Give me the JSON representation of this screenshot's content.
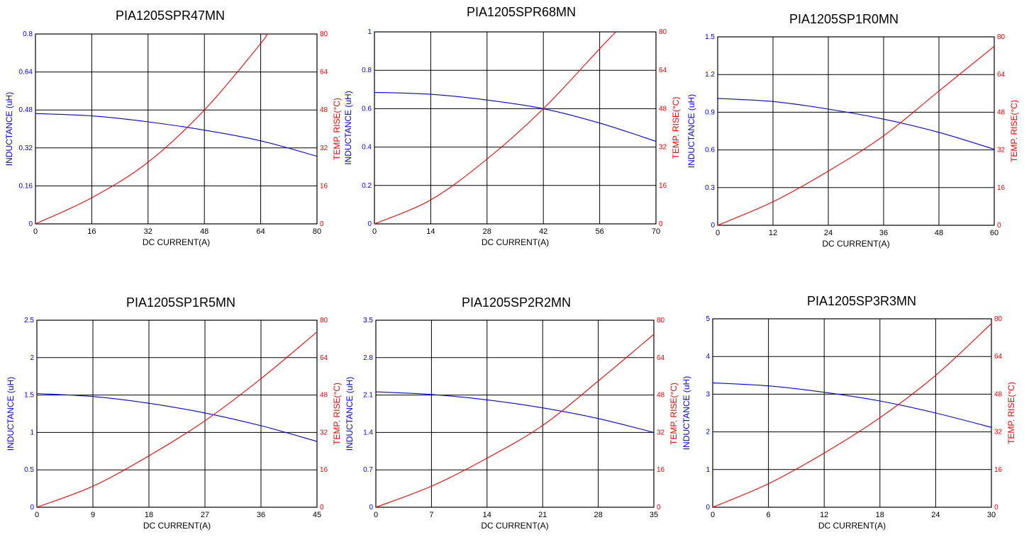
{
  "colors": {
    "inductance": "#0000ff",
    "temp_rise": "#ff0000",
    "grid": "#000000"
  },
  "chart_data": [
    {
      "type": "line",
      "title": "PIA1205SPR47MN",
      "xlabel": "DC CURRENT(A)",
      "ylabel": "INDUCTANCE (uH)",
      "y2label": "TEMP. RISE(°C)",
      "xlim": [
        0,
        80
      ],
      "ylim": [
        0,
        0.8
      ],
      "y2lim": [
        0,
        80
      ],
      "xticks": [
        "0",
        "16",
        "32",
        "48",
        "64",
        "80"
      ],
      "yticks": [
        "0",
        "0.16",
        "0.32",
        "0.48",
        "0.64",
        "0.8"
      ],
      "y2ticks": [
        "0",
        "16",
        "32",
        "48",
        "64",
        "80"
      ],
      "grid": true,
      "series": [
        {
          "axis": "left",
          "color": "#0000ff",
          "x": [
            0,
            16,
            32,
            48,
            64,
            80
          ],
          "values": [
            0.465,
            0.455,
            0.43,
            0.395,
            0.35,
            0.285
          ]
        },
        {
          "axis": "right",
          "color": "#ff0000",
          "x": [
            0,
            16,
            32,
            48,
            64,
            65.5
          ],
          "values": [
            0,
            11,
            26,
            48,
            76,
            80
          ]
        }
      ]
    },
    {
      "type": "line",
      "title": "PIA1205SPR68MN",
      "xlabel": "DC CURRENT(A)",
      "ylabel": "INDUCTANCE (uH)",
      "y2label": "TEMP. RISE(°C)",
      "xlim": [
        0,
        70
      ],
      "ylim": [
        0,
        1
      ],
      "y2lim": [
        0,
        80
      ],
      "xticks": [
        "0",
        "14",
        "28",
        "42",
        "56",
        "70"
      ],
      "yticks": [
        "0",
        "0.2",
        "0.4",
        "0.6",
        "0.8",
        "1"
      ],
      "y2ticks": [
        "0",
        "16",
        "32",
        "48",
        "64",
        "80"
      ],
      "grid": true,
      "series": [
        {
          "axis": "left",
          "color": "#0000ff",
          "x": [
            0,
            14,
            28,
            42,
            56,
            70
          ],
          "values": [
            0.685,
            0.675,
            0.645,
            0.6,
            0.525,
            0.43
          ]
        },
        {
          "axis": "right",
          "color": "#ff0000",
          "x": [
            0,
            14,
            28,
            42,
            56,
            60
          ],
          "values": [
            0,
            10,
            27,
            48,
            73,
            80
          ]
        }
      ]
    },
    {
      "type": "line",
      "title": "PIA1205SP1R0MN",
      "xlabel": "DC CURRENT(A)",
      "ylabel": "INDUCTANCE (uH)",
      "y2label": "TEMP. RISE(°C)",
      "xlim": [
        0,
        60
      ],
      "ylim": [
        0,
        1.5
      ],
      "y2lim": [
        0,
        80
      ],
      "xticks": [
        "0",
        "12",
        "24",
        "36",
        "48",
        "60"
      ],
      "yticks": [
        "0",
        "0.3",
        "0.6",
        "0.9",
        "1.2",
        "1.5"
      ],
      "y2ticks": [
        "0",
        "16",
        "32",
        "48",
        "64",
        "80"
      ],
      "grid": true,
      "series": [
        {
          "axis": "left",
          "color": "#0000ff",
          "x": [
            0,
            12,
            24,
            36,
            48,
            60
          ],
          "values": [
            1.01,
            0.985,
            0.925,
            0.845,
            0.74,
            0.605
          ]
        },
        {
          "axis": "right",
          "color": "#ff0000",
          "x": [
            0,
            12,
            24,
            36,
            48,
            60
          ],
          "values": [
            0,
            10,
            23,
            38,
            57,
            76
          ]
        }
      ]
    },
    {
      "type": "line",
      "title": "PIA1205SP1R5MN",
      "xlabel": "DC CURRENT(A)",
      "ylabel": "INDUCTANCE (uH)",
      "y2label": "TEMP. RISE(°C)",
      "xlim": [
        0,
        45
      ],
      "ylim": [
        0,
        2.5
      ],
      "y2lim": [
        0,
        80
      ],
      "xticks": [
        "0",
        "9",
        "18",
        "27",
        "36",
        "45"
      ],
      "yticks": [
        "0",
        "0.5",
        "1",
        "1.5",
        "2",
        "2.5"
      ],
      "y2ticks": [
        "0",
        "16",
        "32",
        "48",
        "64",
        "80"
      ],
      "grid": true,
      "series": [
        {
          "axis": "left",
          "color": "#0000ff",
          "x": [
            0,
            9,
            18,
            27,
            36,
            45
          ],
          "values": [
            1.52,
            1.48,
            1.39,
            1.26,
            1.09,
            0.88
          ]
        },
        {
          "axis": "right",
          "color": "#ff0000",
          "x": [
            0,
            9,
            18,
            27,
            36,
            45
          ],
          "values": [
            0,
            9,
            22,
            37,
            55,
            75
          ]
        }
      ]
    },
    {
      "type": "line",
      "title": "PIA1205SP2R2MN",
      "xlabel": "DC CURRENT(A)",
      "ylabel": "INDUCTANCE (uH)",
      "y2label": "TEMP. RISE(°C)",
      "xlim": [
        0,
        35
      ],
      "ylim": [
        0,
        3.5
      ],
      "y2lim": [
        0,
        80
      ],
      "xticks": [
        "0",
        "7",
        "14",
        "21",
        "28",
        "35"
      ],
      "yticks": [
        "0",
        "0.7",
        "1.4",
        "2.1",
        "2.8",
        "3.5"
      ],
      "y2ticks": [
        "0",
        "16",
        "32",
        "48",
        "64",
        "80"
      ],
      "grid": true,
      "series": [
        {
          "axis": "left",
          "color": "#0000ff",
          "x": [
            0,
            7,
            14,
            21,
            28,
            35
          ],
          "values": [
            2.16,
            2.11,
            2.01,
            1.86,
            1.66,
            1.4
          ]
        },
        {
          "axis": "right",
          "color": "#ff0000",
          "x": [
            0,
            7,
            14,
            21,
            28,
            35
          ],
          "values": [
            0,
            9,
            21,
            35,
            54,
            74
          ]
        }
      ]
    },
    {
      "type": "line",
      "title": "PIA1205SP3R3MN",
      "xlabel": "DC CURRENT(A)",
      "ylabel": "INDUCTANCE (uH)",
      "y2label": "TEMP. RISE(°C)",
      "xlim": [
        0,
        30
      ],
      "ylim": [
        0,
        5
      ],
      "y2lim": [
        0,
        80
      ],
      "xticks": [
        "0",
        "6",
        "12",
        "18",
        "24",
        "30"
      ],
      "yticks": [
        "0",
        "1",
        "2",
        "3",
        "4",
        "5"
      ],
      "y2ticks": [
        "0",
        "16",
        "32",
        "48",
        "64",
        "80"
      ],
      "grid": true,
      "series": [
        {
          "axis": "left",
          "color": "#0000ff",
          "x": [
            0,
            6,
            12,
            18,
            24,
            30
          ],
          "values": [
            3.3,
            3.22,
            3.05,
            2.82,
            2.5,
            2.12
          ]
        },
        {
          "axis": "right",
          "color": "#ff0000",
          "x": [
            0,
            6,
            12,
            18,
            24,
            30
          ],
          "values": [
            0,
            10,
            23,
            38,
            56,
            78
          ]
        }
      ]
    }
  ]
}
